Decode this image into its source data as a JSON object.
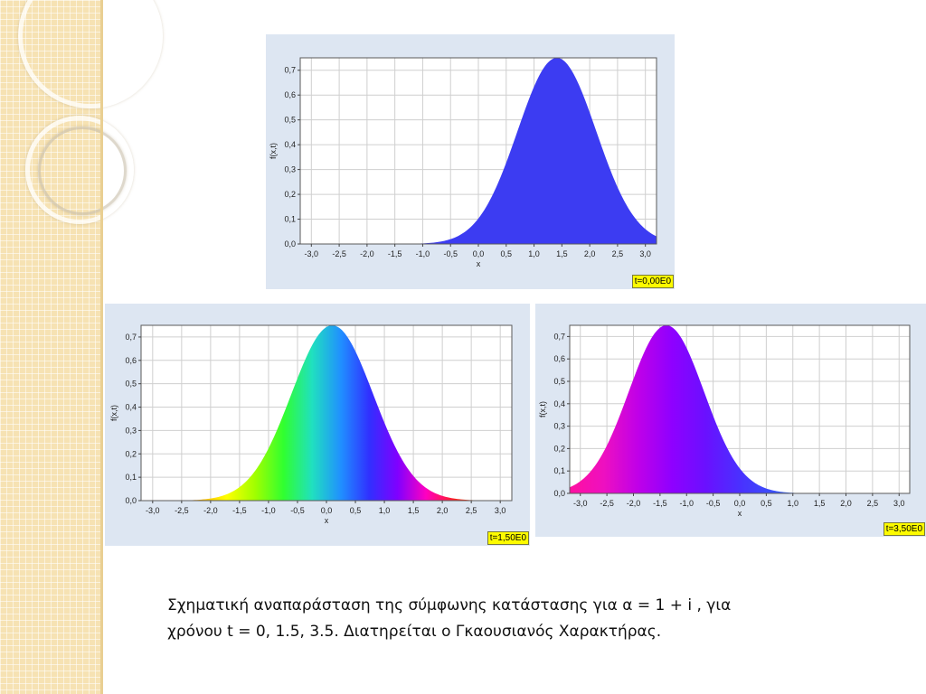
{
  "caption": {
    "line1": "Σχηματική αναπαράσταση της σύμφωνης κατάστασης για α = 1 + i , για",
    "line2": "χρόνου t = 0, 1.5, 3.5.  Διατηρείται ο Γκαουσιανός Χαρακτήρας."
  },
  "chart_data": [
    {
      "type": "area",
      "time_label": "t=0,00E0",
      "xlabel": "x",
      "ylabel": "f(x,t)",
      "xlim": [
        -3.2,
        3.2
      ],
      "ylim": [
        0,
        0.75
      ],
      "xticks": [
        "-3,0",
        "-2,5",
        "-2,0",
        "-1,5",
        "-1,0",
        "-0,5",
        "0,0",
        "0,5",
        "1,0",
        "1,5",
        "2,0",
        "2,5",
        "3,0"
      ],
      "yticks": [
        "0,0",
        "0,1",
        "0,2",
        "0,3",
        "0,4",
        "0,5",
        "0,6",
        "0,7"
      ],
      "grid": true,
      "peak_x": 1.41,
      "peak_y": 0.75,
      "fill": "single",
      "color": "#3c3cf2"
    },
    {
      "type": "area",
      "time_label": "t=1,50E0",
      "xlabel": "x",
      "ylabel": "f(x,t)",
      "xlim": [
        -3.2,
        3.2
      ],
      "ylim": [
        0,
        0.75
      ],
      "xticks": [
        "-3,0",
        "-2,5",
        "-2,0",
        "-1,5",
        "-1,0",
        "-0,5",
        "0,0",
        "0,5",
        "1,0",
        "1,5",
        "2,0",
        "2,5",
        "3,0"
      ],
      "yticks": [
        "0,0",
        "0,1",
        "0,2",
        "0,3",
        "0,4",
        "0,5",
        "0,6",
        "0,7"
      ],
      "grid": true,
      "peak_x": 0.1,
      "peak_y": 0.75,
      "fill": "phase",
      "phase_colors": [
        "#ff2a10",
        "#ff2020",
        "#ffb000",
        "#ffff00",
        "#a0ff00",
        "#30ff30",
        "#20e0c0",
        "#2090ff",
        "#3030ff",
        "#8000ff",
        "#ff00c0",
        "#ff2020",
        "#ff5000",
        "#ff8000"
      ]
    },
    {
      "type": "area",
      "time_label": "t=3,50E0",
      "xlabel": "x",
      "ylabel": "f(x,t)",
      "xlim": [
        -3.2,
        3.2
      ],
      "ylim": [
        0,
        0.75
      ],
      "xticks": [
        "-3,0",
        "-2,5",
        "-2,0",
        "-1,5",
        "-1,0",
        "-0,5",
        "0,0",
        "0,5",
        "1,0",
        "1,5",
        "2,0",
        "2,5",
        "3,0"
      ],
      "yticks": [
        "0,0",
        "0,1",
        "0,2",
        "0,3",
        "0,4",
        "0,5",
        "0,6",
        "0,7"
      ],
      "grid": true,
      "peak_x": -1.38,
      "peak_y": 0.75,
      "fill": "phase",
      "phase_colors": [
        "#ff10a0",
        "#ee10c0",
        "#c000e8",
        "#8f00ff",
        "#6a10ff",
        "#4a30ff",
        "#3a50f8",
        "#2f80ee",
        "#25a8d8",
        "#20c080",
        "#20c040"
      ]
    }
  ]
}
